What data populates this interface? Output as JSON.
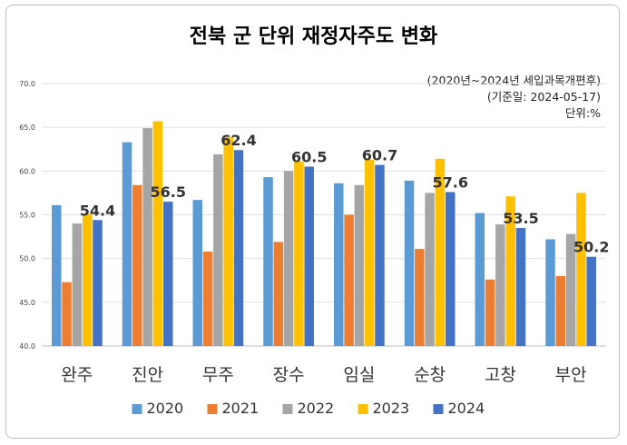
{
  "chart_data": {
    "type": "bar",
    "title": "전북 군 단위 재정자주도 변화",
    "notes": [
      "(2020년~2024년 세입과목개편후)",
      "(기준일: 2024-05-17)",
      "단위:%"
    ],
    "categories": [
      "완주",
      "진안",
      "무주",
      "장수",
      "임실",
      "순창",
      "고창",
      "부안"
    ],
    "series": [
      {
        "name": "2020",
        "color": "#5b9bd5",
        "values": [
          56.1,
          63.3,
          56.7,
          59.3,
          58.6,
          58.9,
          55.2,
          52.2
        ]
      },
      {
        "name": "2021",
        "color": "#ed7d31",
        "values": [
          47.3,
          58.4,
          50.8,
          51.9,
          55.0,
          51.1,
          47.6,
          48.0
        ]
      },
      {
        "name": "2022",
        "color": "#a5a5a5",
        "values": [
          54.0,
          64.9,
          61.9,
          60.0,
          58.4,
          57.5,
          53.9,
          52.8
        ]
      },
      {
        "name": "2023",
        "color": "#ffc000",
        "values": [
          55.1,
          65.7,
          63.9,
          61.1,
          61.3,
          61.4,
          57.1,
          57.5
        ]
      },
      {
        "name": "2024",
        "color": "#4472c4",
        "values": [
          54.4,
          56.5,
          62.4,
          60.5,
          60.7,
          57.6,
          53.5,
          50.2
        ]
      }
    ],
    "data_labels": [
      "54.4",
      "56.5",
      "62.4",
      "60.5",
      "60.7",
      "57.6",
      "53.5",
      "50.2"
    ],
    "y_ticks": [
      "40.0",
      "45.0",
      "50.0",
      "55.0",
      "60.0",
      "65.0",
      "70.0"
    ],
    "ylim": [
      40,
      70
    ],
    "grid": true,
    "legend_position": "bottom"
  }
}
